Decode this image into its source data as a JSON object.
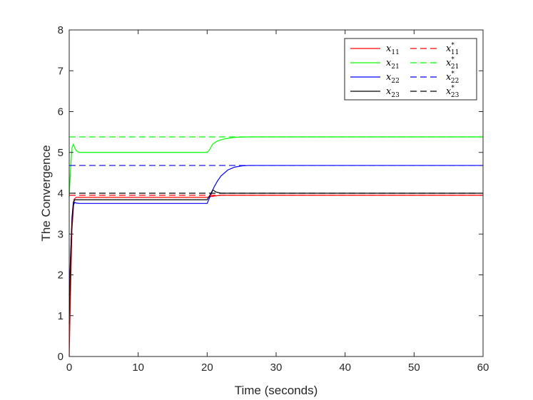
{
  "chart_data": {
    "type": "line",
    "title": "",
    "xlabel": "Time (seconds)",
    "ylabel": "The Convergence",
    "xlim": [
      0,
      60
    ],
    "ylim": [
      0,
      8
    ],
    "xticks": [
      "0",
      "10",
      "20",
      "30",
      "40",
      "50",
      "60"
    ],
    "yticks": [
      "0",
      "1",
      "2",
      "3",
      "4",
      "5",
      "6",
      "7",
      "8"
    ],
    "grid": false,
    "legend_position": "top-right",
    "series": [
      {
        "name": "x11",
        "label_base": "x",
        "label_sub": "11",
        "label_sup": "",
        "color": "#ff0000",
        "style": "solid",
        "x": [
          0,
          0.2,
          0.4,
          0.7,
          1,
          1.5,
          2,
          5,
          10,
          15,
          20,
          20.3,
          21,
          22,
          25,
          30,
          40,
          50,
          60
        ],
        "y": [
          0,
          1.6,
          3.1,
          3.85,
          3.9,
          3.9,
          3.9,
          3.9,
          3.9,
          3.9,
          3.9,
          3.91,
          3.93,
          3.95,
          3.95,
          3.95,
          3.95,
          3.95,
          3.95
        ]
      },
      {
        "name": "x21",
        "label_base": "x",
        "label_sub": "21",
        "label_sup": "",
        "color": "#00ff00",
        "style": "solid",
        "x": [
          0,
          0.2,
          0.4,
          0.6,
          0.8,
          1,
          1.3,
          1.6,
          2,
          5,
          10,
          15,
          20,
          20.3,
          20.8,
          21.5,
          22.5,
          24,
          26,
          30,
          40,
          50,
          60
        ],
        "y": [
          3.9,
          4.6,
          5.1,
          5.2,
          5.12,
          5.05,
          5.01,
          5.0,
          5.0,
          5.0,
          5.0,
          5.0,
          5.0,
          5.05,
          5.2,
          5.28,
          5.33,
          5.37,
          5.38,
          5.38,
          5.38,
          5.38,
          5.38
        ]
      },
      {
        "name": "x22",
        "label_base": "x",
        "label_sub": "22",
        "label_sup": "",
        "color": "#0000ff",
        "style": "solid",
        "x": [
          0,
          0.2,
          0.4,
          0.6,
          0.8,
          1,
          1.5,
          2,
          5,
          10,
          15,
          20,
          20.5,
          21,
          21.5,
          22,
          23,
          24,
          25,
          26,
          30,
          40,
          50,
          60
        ],
        "y": [
          1.5,
          2.5,
          3.3,
          3.7,
          3.78,
          3.76,
          3.75,
          3.75,
          3.75,
          3.75,
          3.75,
          3.75,
          3.95,
          4.15,
          4.3,
          4.42,
          4.57,
          4.64,
          4.67,
          4.68,
          4.68,
          4.68,
          4.68,
          4.68
        ]
      },
      {
        "name": "x23",
        "label_base": "x",
        "label_sub": "23",
        "label_sup": "",
        "color": "#000000",
        "style": "solid",
        "x": [
          0,
          0.2,
          0.4,
          0.6,
          0.8,
          1,
          1.5,
          2,
          5,
          10,
          15,
          20,
          20.4,
          20.8,
          21.3,
          22,
          23,
          25,
          30,
          40,
          50,
          60
        ],
        "y": [
          0.8,
          2.4,
          3.4,
          3.78,
          3.84,
          3.84,
          3.84,
          3.84,
          3.84,
          3.84,
          3.84,
          3.84,
          3.95,
          4.08,
          4.03,
          4.0,
          4.0,
          4.0,
          4.0,
          4.0,
          4.0,
          4.0
        ]
      },
      {
        "name": "x11*",
        "label_base": "x",
        "label_sub": "11",
        "label_sup": "*",
        "color": "#ff0000",
        "style": "dashed",
        "x": [
          0,
          60
        ],
        "y": [
          3.95,
          3.95
        ]
      },
      {
        "name": "x21*",
        "label_base": "x",
        "label_sub": "21",
        "label_sup": "*",
        "color": "#00ff00",
        "style": "dashed",
        "x": [
          0,
          60
        ],
        "y": [
          5.38,
          5.38
        ]
      },
      {
        "name": "x22*",
        "label_base": "x",
        "label_sub": "22",
        "label_sup": "*",
        "color": "#0000ff",
        "style": "dashed",
        "x": [
          0,
          60
        ],
        "y": [
          4.68,
          4.68
        ]
      },
      {
        "name": "x23*",
        "label_base": "x",
        "label_sub": "23",
        "label_sup": "*",
        "color": "#000000",
        "style": "dashed",
        "x": [
          0,
          60
        ],
        "y": [
          4.0,
          4.0
        ]
      }
    ]
  }
}
